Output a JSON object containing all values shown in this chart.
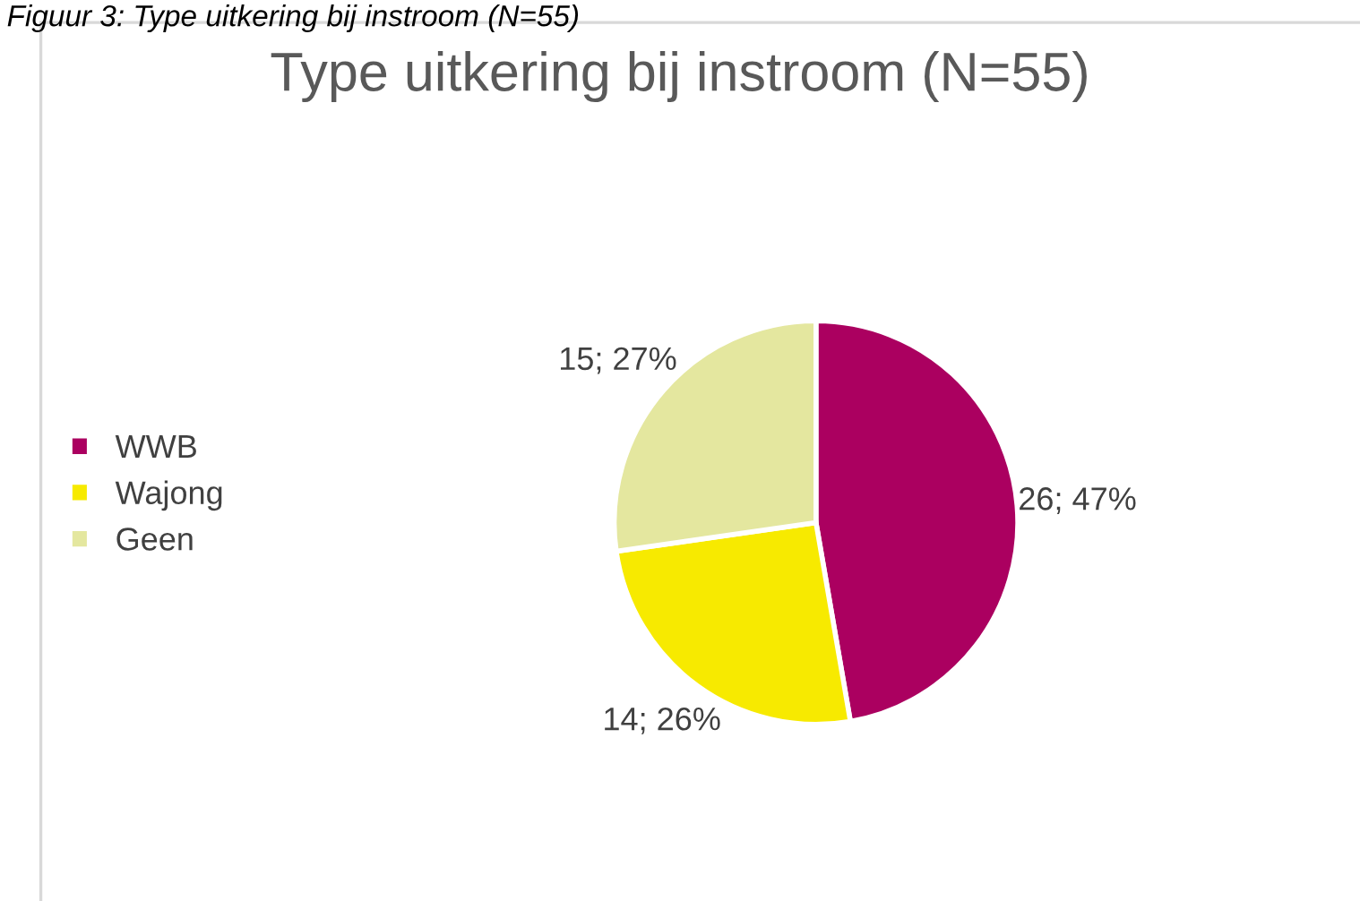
{
  "chart_data": {
    "type": "pie",
    "title": "Type uitkering bij instroom (N=55)",
    "annotations": [
      "Figuur 3: Type uitkering bij instroom (N=55)"
    ],
    "categories": [
      "WWB",
      "Wajong",
      "Geen"
    ],
    "values": [
      26,
      14,
      15
    ],
    "value_labels": [
      "26; 47%",
      "14; 26%",
      "15; 27%"
    ],
    "colors": [
      "#ab0060",
      "#f7ea00",
      "#e4e79f"
    ],
    "legend": "left"
  }
}
